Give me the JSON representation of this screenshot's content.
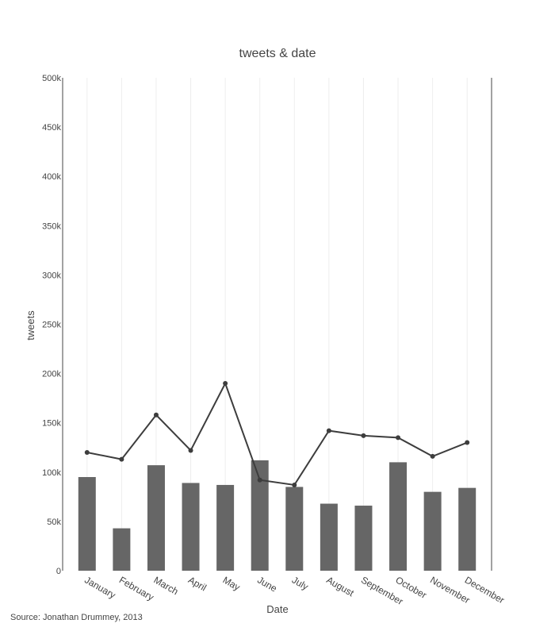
{
  "chart_data": {
    "type": "bar",
    "title": "tweets & date",
    "xlabel": "Date",
    "ylabel": "tweets",
    "categories": [
      "January",
      "February",
      "March",
      "April",
      "May",
      "June",
      "July",
      "August",
      "September",
      "October",
      "November",
      "December"
    ],
    "series": [
      {
        "type": "bar",
        "values": [
          95000,
          43000,
          107000,
          89000,
          87000,
          112000,
          85000,
          68000,
          66000,
          110000,
          80000,
          84000
        ],
        "color": "#666666"
      },
      {
        "type": "line",
        "values": [
          120000,
          113000,
          158000,
          122000,
          190000,
          92000,
          87000,
          142000,
          137000,
          135000,
          116000,
          130000
        ],
        "color": "#3d3d3d"
      }
    ],
    "ylim": [
      0,
      500000
    ],
    "yticks": [
      0,
      50000,
      100000,
      150000,
      200000,
      250000,
      300000,
      350000,
      400000,
      450000,
      500000
    ],
    "ytick_labels": [
      "0",
      "50k",
      "100k",
      "150k",
      "200k",
      "250k",
      "300k",
      "350k",
      "400k",
      "450k",
      "500k"
    ],
    "grid": "vertical"
  },
  "source": "Source: Jonathan Drummey, 2013"
}
